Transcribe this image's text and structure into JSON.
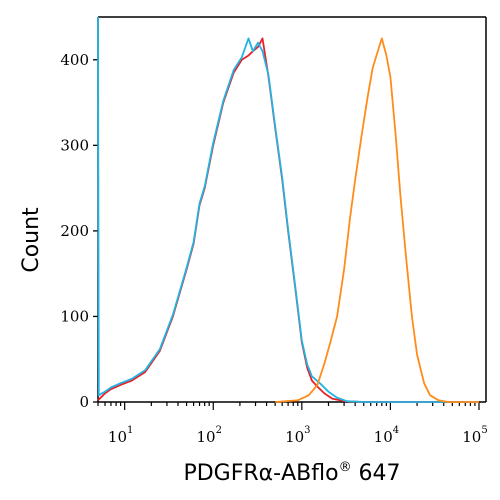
{
  "chart_data": {
    "type": "line",
    "title": "",
    "xlabel": "PDGFRα-ABflo",
    "xlabel_sup": "®",
    "xlabel_suffix": " 647",
    "ylabel": "Count",
    "x_scale": "log",
    "xlim": [
      5,
      120000
    ],
    "ylim": [
      0,
      450
    ],
    "grid": false,
    "legend": "none",
    "x_ticks": [
      {
        "value": 10,
        "base": "10",
        "exp": "1"
      },
      {
        "value": 100,
        "base": "10",
        "exp": "2"
      },
      {
        "value": 1000,
        "base": "10",
        "exp": "3"
      },
      {
        "value": 10000,
        "base": "10",
        "exp": "4"
      },
      {
        "value": 100000,
        "base": "10",
        "exp": "5"
      }
    ],
    "y_ticks": [
      {
        "value": 0,
        "label": "0"
      },
      {
        "value": 100,
        "label": "100"
      },
      {
        "value": 200,
        "label": "200"
      },
      {
        "value": 300,
        "label": "300"
      },
      {
        "value": 400,
        "label": "400"
      }
    ],
    "series": [
      {
        "color": "#e8202a",
        "points": [
          [
            5,
            2
          ],
          [
            6,
            10
          ],
          [
            7,
            15
          ],
          [
            9,
            20
          ],
          [
            12,
            25
          ],
          [
            17,
            35
          ],
          [
            25,
            60
          ],
          [
            35,
            100
          ],
          [
            50,
            155
          ],
          [
            60,
            185
          ],
          [
            70,
            230
          ],
          [
            80,
            250
          ],
          [
            100,
            300
          ],
          [
            130,
            350
          ],
          [
            170,
            385
          ],
          [
            210,
            400
          ],
          [
            250,
            405
          ],
          [
            280,
            410
          ],
          [
            320,
            415
          ],
          [
            360,
            425
          ],
          [
            420,
            380
          ],
          [
            500,
            320
          ],
          [
            600,
            260
          ],
          [
            700,
            200
          ],
          [
            850,
            130
          ],
          [
            1000,
            70
          ],
          [
            1150,
            40
          ],
          [
            1300,
            25
          ],
          [
            1500,
            18
          ],
          [
            1800,
            10
          ],
          [
            2200,
            4
          ],
          [
            3000,
            1
          ],
          [
            5000,
            0
          ],
          [
            100000,
            0
          ]
        ]
      },
      {
        "color": "#23b3e0",
        "points": [
          [
            5,
            450
          ],
          [
            5.1,
            8
          ],
          [
            6,
            12
          ],
          [
            7,
            17
          ],
          [
            9,
            22
          ],
          [
            12,
            27
          ],
          [
            17,
            37
          ],
          [
            25,
            62
          ],
          [
            35,
            102
          ],
          [
            50,
            157
          ],
          [
            60,
            187
          ],
          [
            70,
            232
          ],
          [
            80,
            252
          ],
          [
            100,
            303
          ],
          [
            130,
            352
          ],
          [
            170,
            388
          ],
          [
            210,
            403
          ],
          [
            250,
            425
          ],
          [
            280,
            410
          ],
          [
            320,
            420
          ],
          [
            360,
            410
          ],
          [
            420,
            382
          ],
          [
            500,
            322
          ],
          [
            600,
            262
          ],
          [
            700,
            202
          ],
          [
            850,
            132
          ],
          [
            1000,
            72
          ],
          [
            1150,
            44
          ],
          [
            1300,
            30
          ],
          [
            1600,
            22
          ],
          [
            2000,
            12
          ],
          [
            2500,
            5
          ],
          [
            3200,
            1
          ],
          [
            5000,
            0
          ],
          [
            100000,
            0
          ]
        ]
      },
      {
        "color": "#ff8c1a",
        "points": [
          [
            500,
            0
          ],
          [
            900,
            2
          ],
          [
            1200,
            8
          ],
          [
            1500,
            20
          ],
          [
            1800,
            45
          ],
          [
            2100,
            70
          ],
          [
            2500,
            100
          ],
          [
            3000,
            155
          ],
          [
            3500,
            215
          ],
          [
            4000,
            260
          ],
          [
            4700,
            310
          ],
          [
            5500,
            355
          ],
          [
            6300,
            390
          ],
          [
            7200,
            410
          ],
          [
            8000,
            425
          ],
          [
            9000,
            405
          ],
          [
            10000,
            380
          ],
          [
            11500,
            310
          ],
          [
            13000,
            240
          ],
          [
            15000,
            170
          ],
          [
            17500,
            100
          ],
          [
            20000,
            55
          ],
          [
            24000,
            22
          ],
          [
            28000,
            8
          ],
          [
            35000,
            2
          ],
          [
            45000,
            0
          ],
          [
            100000,
            0
          ]
        ]
      }
    ]
  }
}
